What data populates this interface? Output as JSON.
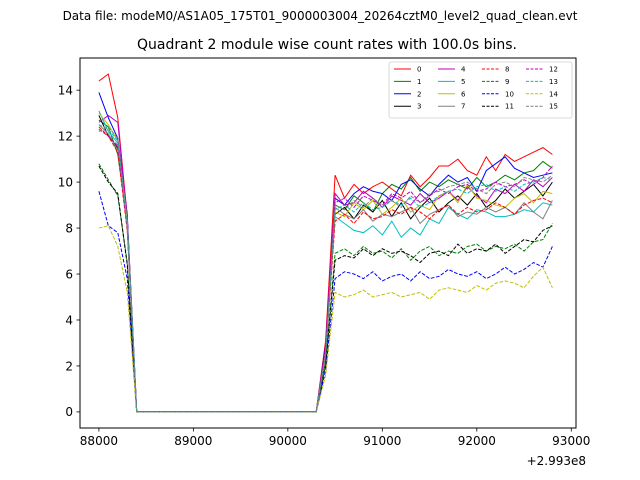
{
  "suptitle": "Data file: modeM0/AS1A05_175T01_9000003004_20264cztM0_level2_quad_clean.evt",
  "chart_data": {
    "type": "line",
    "title": "Quadrant 2 module wise count rates with 100.0s bins.",
    "xlabel": "",
    "ylabel": "",
    "x_offset_label": "+2.993e8",
    "xlim": [
      87800,
      93050
    ],
    "ylim": [
      -0.7,
      15.4
    ],
    "xticks": [
      88000,
      89000,
      90000,
      91000,
      92000,
      93000
    ],
    "xtick_labels": [
      "88000",
      "89000",
      "90000",
      "91000",
      "92000",
      "93000"
    ],
    "yticks": [
      0,
      2,
      4,
      6,
      8,
      10,
      12,
      14
    ],
    "ytick_labels": [
      "0",
      "2",
      "4",
      "6",
      "8",
      "10",
      "12",
      "14"
    ],
    "grid": false,
    "legend_position": "top-right",
    "legend_columns": 4,
    "x": [
      88000,
      88100,
      88200,
      88300,
      88400,
      88500,
      88600,
      88700,
      88800,
      88900,
      89000,
      89100,
      89200,
      89300,
      89400,
      89500,
      89600,
      89700,
      89800,
      89900,
      90000,
      90100,
      90200,
      90300,
      90400,
      90500,
      90600,
      90700,
      90800,
      90900,
      91000,
      91100,
      91200,
      91300,
      91400,
      91500,
      91600,
      91700,
      91800,
      91900,
      92000,
      92100,
      92200,
      92300,
      92400,
      92500,
      92600,
      92700,
      92800
    ],
    "series": [
      {
        "name": "0",
        "color": "#ff0000",
        "dash": "solid",
        "values": [
          14.4,
          14.7,
          12.8,
          8.5,
          0,
          0,
          0,
          0,
          0,
          0,
          0,
          0,
          0,
          0,
          0,
          0,
          0,
          0,
          0,
          0,
          0,
          0,
          0,
          0,
          3.1,
          10.3,
          9.3,
          9.9,
          9.5,
          9.8,
          10.0,
          9.7,
          9.4,
          10.3,
          9.8,
          10.2,
          10.7,
          10.7,
          11.0,
          10.5,
          10.3,
          11.1,
          10.5,
          11.2,
          10.9,
          11.1,
          11.3,
          11.5,
          11.2
        ]
      },
      {
        "name": "1",
        "color": "#008000",
        "dash": "solid",
        "values": [
          12.7,
          12.4,
          11.2,
          8.3,
          0,
          0,
          0,
          0,
          0,
          0,
          0,
          0,
          0,
          0,
          0,
          0,
          0,
          0,
          0,
          0,
          0,
          0,
          0,
          0,
          2.7,
          9.0,
          8.8,
          9.4,
          9.1,
          8.7,
          9.5,
          9.9,
          9.7,
          10.2,
          9.6,
          10.0,
          9.8,
          10.1,
          9.9,
          9.7,
          10.2,
          9.8,
          10.0,
          10.3,
          10.1,
          10.4,
          10.5,
          10.9,
          10.6
        ]
      },
      {
        "name": "2",
        "color": "#0000ff",
        "dash": "solid",
        "values": [
          13.9,
          12.8,
          11.9,
          8.6,
          0,
          0,
          0,
          0,
          0,
          0,
          0,
          0,
          0,
          0,
          0,
          0,
          0,
          0,
          0,
          0,
          0,
          0,
          0,
          0,
          2.9,
          9.3,
          9.0,
          9.5,
          9.8,
          9.6,
          9.5,
          9.2,
          9.9,
          10.1,
          9.7,
          9.4,
          9.9,
          10.3,
          10.0,
          10.2,
          9.6,
          10.5,
          10.8,
          11.1,
          10.6,
          10.4,
          10.2,
          10.3,
          10.4
        ]
      },
      {
        "name": "3",
        "color": "#000000",
        "dash": "solid",
        "values": [
          12.9,
          12.0,
          11.5,
          8.1,
          0,
          0,
          0,
          0,
          0,
          0,
          0,
          0,
          0,
          0,
          0,
          0,
          0,
          0,
          0,
          0,
          0,
          0,
          0,
          0,
          2.6,
          8.6,
          8.9,
          8.4,
          9.0,
          8.7,
          9.2,
          8.5,
          9.1,
          8.4,
          8.9,
          9.3,
          8.7,
          9.1,
          9.4,
          9.0,
          9.5,
          8.9,
          9.2,
          9.7,
          9.3,
          9.6,
          9.9,
          9.4,
          10.0
        ]
      },
      {
        "name": "4",
        "color": "#bf00bf",
        "dash": "solid",
        "values": [
          12.6,
          12.9,
          12.6,
          8.4,
          0,
          0,
          0,
          0,
          0,
          0,
          0,
          0,
          0,
          0,
          0,
          0,
          0,
          0,
          0,
          0,
          0,
          0,
          0,
          0,
          2.8,
          9.5,
          9.0,
          9.1,
          9.6,
          9.3,
          8.9,
          9.4,
          9.2,
          9.0,
          9.5,
          9.1,
          9.3,
          9.6,
          9.2,
          9.8,
          9.4,
          9.1,
          9.7,
          9.5,
          9.9,
          9.6,
          10.1,
          9.8,
          10.2
        ]
      },
      {
        "name": "5",
        "color": "#00bfbf",
        "dash": "solid",
        "values": [
          13.1,
          12.2,
          11.7,
          8.2,
          0,
          0,
          0,
          0,
          0,
          0,
          0,
          0,
          0,
          0,
          0,
          0,
          0,
          0,
          0,
          0,
          0,
          0,
          0,
          0,
          2.5,
          8.5,
          8.2,
          7.9,
          7.8,
          8.1,
          7.7,
          8.3,
          7.6,
          8.0,
          7.7,
          8.4,
          8.2,
          8.9,
          8.6,
          8.4,
          8.8,
          8.7,
          8.5,
          8.5,
          8.6,
          8.8,
          8.7,
          9.1,
          9.0
        ]
      },
      {
        "name": "6",
        "color": "#bfbf00",
        "dash": "solid",
        "values": [
          13.0,
          12.5,
          11.8,
          8.3,
          0,
          0,
          0,
          0,
          0,
          0,
          0,
          0,
          0,
          0,
          0,
          0,
          0,
          0,
          0,
          0,
          0,
          0,
          0,
          0,
          2.6,
          8.7,
          8.5,
          9.1,
          8.8,
          9.2,
          8.6,
          8.9,
          9.3,
          8.7,
          9.0,
          8.8,
          9.4,
          9.6,
          9.1,
          9.9,
          9.3,
          9.2,
          9.0,
          8.9,
          9.3,
          9.5,
          9.1,
          9.6,
          9.5
        ]
      },
      {
        "name": "7",
        "color": "#808080",
        "dash": "solid",
        "values": [
          12.5,
          12.1,
          11.4,
          8.0,
          0,
          0,
          0,
          0,
          0,
          0,
          0,
          0,
          0,
          0,
          0,
          0,
          0,
          0,
          0,
          0,
          0,
          0,
          0,
          0,
          2.5,
          8.9,
          8.6,
          8.4,
          8.8,
          8.3,
          8.6,
          8.5,
          8.7,
          8.9,
          8.2,
          8.6,
          8.8,
          9.0,
          8.5,
          8.7,
          8.6,
          8.9,
          8.7,
          8.9,
          8.6,
          9.1,
          8.7,
          8.4,
          9.2
        ]
      },
      {
        "name": "8",
        "color": "#ff0000",
        "dash": "dashed",
        "values": [
          12.4,
          12.0,
          11.3,
          7.9,
          0,
          0,
          0,
          0,
          0,
          0,
          0,
          0,
          0,
          0,
          0,
          0,
          0,
          0,
          0,
          0,
          0,
          0,
          0,
          0,
          2.4,
          8.3,
          8.6,
          8.2,
          8.7,
          8.4,
          8.5,
          8.8,
          8.6,
          8.9,
          8.7,
          8.4,
          8.8,
          9.0,
          8.6,
          8.9,
          8.7,
          8.8,
          9.1,
          8.9,
          8.6,
          9.0,
          9.2,
          9.3,
          9.1
        ]
      },
      {
        "name": "9",
        "color": "#008000",
        "dash": "dashed",
        "values": [
          10.8,
          10.1,
          9.4,
          6.5,
          0,
          0,
          0,
          0,
          0,
          0,
          0,
          0,
          0,
          0,
          0,
          0,
          0,
          0,
          0,
          0,
          0,
          0,
          0,
          0,
          2.1,
          6.9,
          7.1,
          6.8,
          7.2,
          6.9,
          7.0,
          6.7,
          7.1,
          6.6,
          7.0,
          7.2,
          6.8,
          7.0,
          6.9,
          7.2,
          7.3,
          7.0,
          7.2,
          7.1,
          7.3,
          7.0,
          7.4,
          7.5,
          8.2
        ]
      },
      {
        "name": "10",
        "color": "#0000ff",
        "dash": "dashed",
        "values": [
          9.6,
          8.1,
          7.8,
          5.8,
          0,
          0,
          0,
          0,
          0,
          0,
          0,
          0,
          0,
          0,
          0,
          0,
          0,
          0,
          0,
          0,
          0,
          0,
          0,
          0,
          1.8,
          5.8,
          6.1,
          6.0,
          5.8,
          6.1,
          5.7,
          5.9,
          6.0,
          5.7,
          6.1,
          5.8,
          5.9,
          6.2,
          6.0,
          5.9,
          6.1,
          5.8,
          6.0,
          6.3,
          6.0,
          6.2,
          6.5,
          6.3,
          7.2
        ]
      },
      {
        "name": "11",
        "color": "#000000",
        "dash": "dashed",
        "values": [
          10.7,
          10.0,
          9.5,
          6.4,
          0,
          0,
          0,
          0,
          0,
          0,
          0,
          0,
          0,
          0,
          0,
          0,
          0,
          0,
          0,
          0,
          0,
          0,
          0,
          0,
          2.1,
          6.6,
          6.8,
          6.7,
          7.1,
          6.8,
          7.1,
          6.9,
          7.0,
          6.8,
          6.5,
          6.9,
          7.0,
          6.8,
          7.3,
          6.9,
          7.1,
          7.0,
          7.3,
          6.9,
          7.2,
          7.5,
          7.4,
          7.9,
          8.1
        ]
      },
      {
        "name": "12",
        "color": "#bf00bf",
        "dash": "dashed",
        "values": [
          12.3,
          12.0,
          11.6,
          8.1,
          0,
          0,
          0,
          0,
          0,
          0,
          0,
          0,
          0,
          0,
          0,
          0,
          0,
          0,
          0,
          0,
          0,
          0,
          0,
          0,
          2.6,
          9.1,
          9.3,
          8.9,
          9.4,
          9.2,
          9.0,
          9.5,
          9.3,
          9.6,
          9.1,
          9.4,
          9.7,
          9.5,
          9.8,
          9.9,
          9.6,
          9.7,
          10.0,
          9.8,
          9.9,
          10.1,
          9.9,
          10.2,
          10.7
        ]
      },
      {
        "name": "13",
        "color": "#00bfbf",
        "dash": "dashed",
        "values": [
          12.5,
          12.3,
          11.8,
          8.2,
          0,
          0,
          0,
          0,
          0,
          0,
          0,
          0,
          0,
          0,
          0,
          0,
          0,
          0,
          0,
          0,
          0,
          0,
          0,
          0,
          2.5,
          8.8,
          9.0,
          8.7,
          9.1,
          8.8,
          8.9,
          9.2,
          9.0,
          9.3,
          8.9,
          9.1,
          9.4,
          9.6,
          9.7,
          9.5,
          9.8,
          9.9,
          9.6,
          9.8,
          9.6,
          9.9,
          10.0,
          10.2,
          10.1
        ]
      },
      {
        "name": "14",
        "color": "#bfbf00",
        "dash": "dashed",
        "values": [
          8.0,
          8.1,
          7.2,
          5.2,
          0,
          0,
          0,
          0,
          0,
          0,
          0,
          0,
          0,
          0,
          0,
          0,
          0,
          0,
          0,
          0,
          0,
          0,
          0,
          0,
          1.6,
          5.2,
          5.0,
          5.1,
          5.3,
          5.0,
          5.1,
          5.2,
          5.0,
          5.1,
          5.2,
          4.9,
          5.3,
          5.4,
          5.3,
          5.2,
          5.5,
          5.3,
          5.6,
          5.7,
          5.6,
          5.4,
          5.9,
          6.3,
          5.4
        ]
      },
      {
        "name": "15",
        "color": "#808080",
        "dash": "dashed",
        "values": [
          12.2,
          12.4,
          11.9,
          8.0,
          0,
          0,
          0,
          0,
          0,
          0,
          0,
          0,
          0,
          0,
          0,
          0,
          0,
          0,
          0,
          0,
          0,
          0,
          0,
          0,
          2.5,
          9.0,
          8.8,
          9.2,
          8.9,
          9.3,
          9.0,
          9.2,
          8.9,
          9.4,
          9.1,
          9.5,
          9.6,
          9.8,
          9.9,
          10.0,
          9.7,
          9.5,
          9.9,
          10.0,
          9.8,
          10.2,
          10.1,
          10.0,
          10.3
        ]
      }
    ]
  }
}
